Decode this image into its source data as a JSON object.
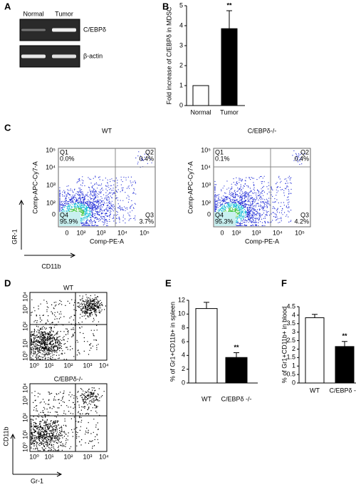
{
  "panel_labels": [
    "A",
    "B",
    "C",
    "D",
    "E",
    "F"
  ],
  "gel": {
    "lanes": [
      "Normal",
      "Tumor"
    ],
    "bands": [
      "C/EBPδ",
      "β-actin"
    ]
  },
  "flow_c": {
    "y_label": "Comp-APC-Cy7-A",
    "x_label": "Comp-PE-A",
    "ticks_y": [
      "10⁵",
      "10⁴",
      "10³",
      "10²",
      "0"
    ],
    "ticks_x": [
      "0",
      "10²",
      "10³",
      "10⁴",
      "10⁵"
    ],
    "marker_y": "GR-1",
    "marker_x": "CD11b",
    "plots": [
      {
        "title": "WT",
        "quadrants": [
          {
            "name": "Q1",
            "value": "0.0%"
          },
          {
            "name": "Q2",
            "value": "0.4%"
          },
          {
            "name": "Q3",
            "value": "3.7%"
          },
          {
            "name": "Q4",
            "value": "95.9%"
          }
        ]
      },
      {
        "title": "C/EBPδ-/-",
        "quadrants": [
          {
            "name": "Q1",
            "value": "0.1%"
          },
          {
            "name": "Q2",
            "value": "0.4%"
          },
          {
            "name": "Q3",
            "value": "4.2%"
          },
          {
            "name": "Q4",
            "value": "95.3%"
          }
        ]
      }
    ]
  },
  "flow_d": {
    "ticks": [
      "10⁰",
      "10¹",
      "10²",
      "10³",
      "10⁴"
    ],
    "marker_y": "CD11b",
    "marker_x": "Gr-1",
    "plots": [
      {
        "title": "WT"
      },
      {
        "title": "C/EBPδ-/-"
      }
    ]
  },
  "chart_data": [
    {
      "type": "bar",
      "ylabel": "Fold increase of C/EBPδ in MDSC",
      "categories": [
        "Normal",
        "Tumor"
      ],
      "values": [
        1,
        3.85
      ],
      "errors": [
        null,
        0.9
      ],
      "colors": [
        "#ffffff",
        "#000000"
      ],
      "ylim": [
        0,
        5
      ],
      "yticks": [
        0,
        1,
        2,
        3,
        4,
        5
      ],
      "annotation": "**"
    },
    {
      "type": "bar",
      "ylabel": "% of Gr1+CD11b+ in spleen",
      "categories": [
        "WT",
        "C/EBPδ -/-"
      ],
      "values": [
        10.8,
        3.7
      ],
      "errors": [
        0.9,
        0.7
      ],
      "colors": [
        "#ffffff",
        "#000000"
      ],
      "ylim": [
        0,
        12
      ],
      "yticks": [
        0,
        2,
        4,
        6,
        8,
        10,
        12
      ],
      "annotation": "**"
    },
    {
      "type": "bar",
      "ylabel": "% of Gr1+CD11b+ in blood",
      "categories": [
        "WT",
        "C/EBPδ -/-"
      ],
      "values": [
        3.85,
        2.15
      ],
      "errors": [
        0.2,
        0.3
      ],
      "colors": [
        "#ffffff",
        "#000000"
      ],
      "ylim": [
        0,
        4.5
      ],
      "yticks": [
        0,
        0.5,
        1,
        1.5,
        2,
        2.5,
        3,
        3.5,
        4,
        4.5
      ],
      "annotation": "**"
    }
  ]
}
